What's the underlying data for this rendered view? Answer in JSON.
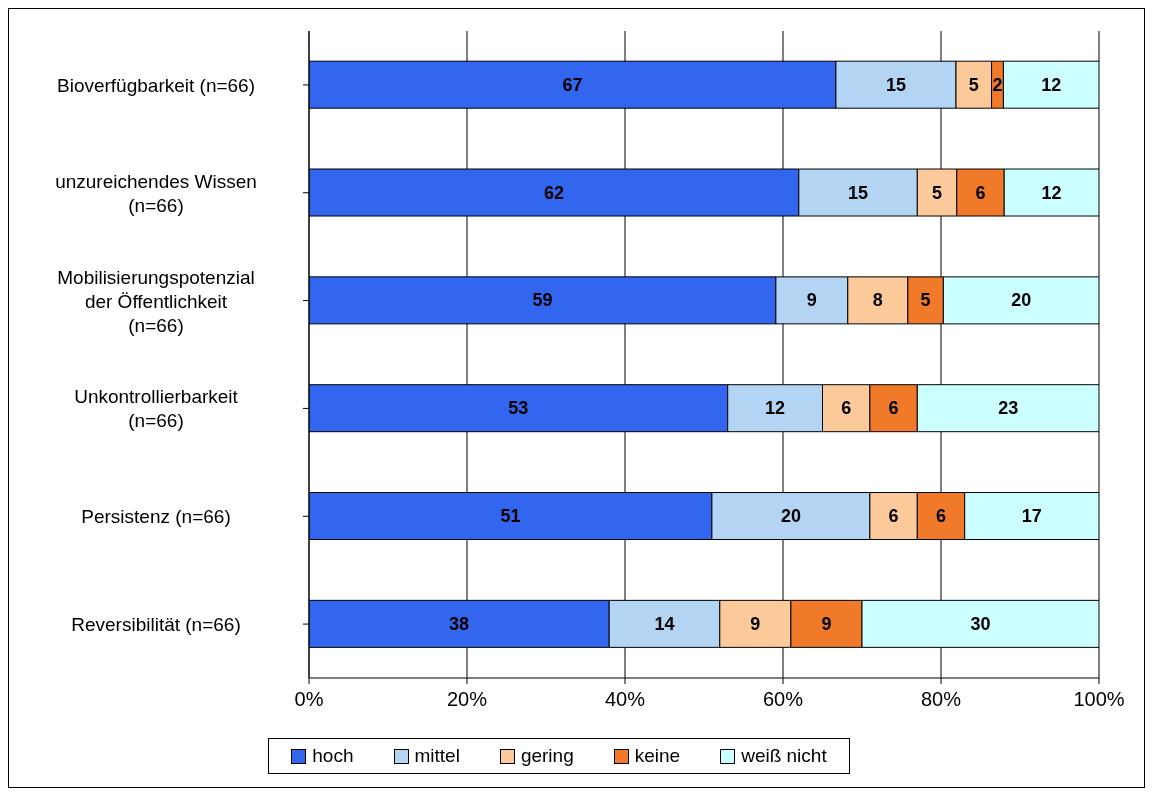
{
  "chart_data": {
    "type": "bar",
    "orientation": "horizontal",
    "stacked": true,
    "categories": [
      "Bioverfügbarkeit (n=66)",
      "unzureichendes Wissen (n=66)",
      "Mobilisierungspotenzial der Öffentlichkeit (n=66)",
      "Unkontrollierbarkeit (n=66)",
      "Persistenz (n=66)",
      "Reversibilität (n=66)"
    ],
    "series": [
      {
        "name": "hoch",
        "color": "#3366ee",
        "values": [
          66.7,
          62,
          59.1,
          53,
          51,
          38
        ],
        "value_labels": [
          "67",
          "62",
          "59",
          "53",
          "51",
          "38"
        ]
      },
      {
        "name": "mittel",
        "color": "#b4d4f4",
        "values": [
          15.2,
          15,
          9.1,
          12,
          20,
          14
        ],
        "value_labels": [
          "15",
          "15",
          "9",
          "12",
          "20",
          "14"
        ]
      },
      {
        "name": "gering",
        "color": "#fcc99a",
        "values": [
          4.5,
          5,
          7.6,
          6,
          6,
          9
        ],
        "value_labels": [
          "5",
          "5",
          "8",
          "6",
          "6",
          "9"
        ]
      },
      {
        "name": "keine",
        "color": "#f07a2a",
        "values": [
          1.5,
          6,
          4.5,
          6,
          6,
          9
        ],
        "value_labels": [
          "2",
          "6",
          "5",
          "6",
          "6",
          "9"
        ]
      },
      {
        "name": "weiß nicht",
        "color": "#ccffff",
        "values": [
          12.1,
          12,
          19.7,
          23,
          17,
          30
        ],
        "value_labels": [
          "12",
          "12",
          "20",
          "23",
          "17",
          "30"
        ]
      }
    ],
    "xlim": [
      0,
      100
    ],
    "xticks": [
      {
        "value": 0,
        "label": "0%"
      },
      {
        "value": 20,
        "label": "20%"
      },
      {
        "value": 40,
        "label": "40%"
      },
      {
        "value": 60,
        "label": "60%"
      },
      {
        "value": 80,
        "label": "80%"
      },
      {
        "value": 100,
        "label": "100%"
      }
    ],
    "grid": "x",
    "legend": "bottom"
  }
}
